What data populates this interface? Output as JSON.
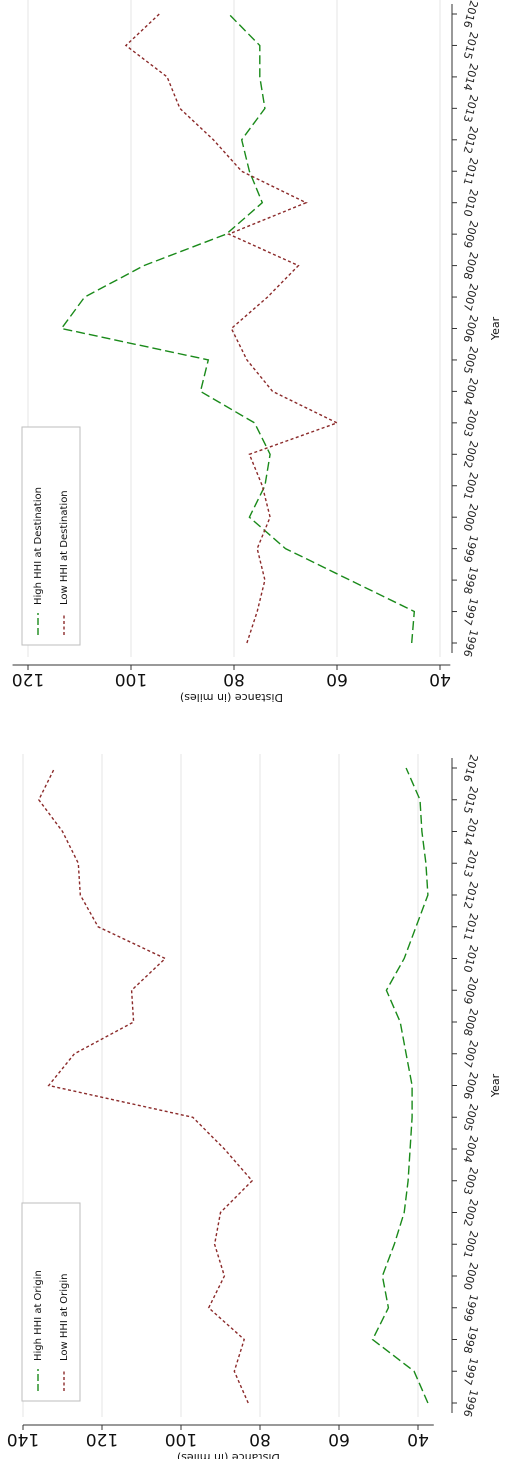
{
  "chart_data": [
    {
      "type": "line",
      "title": "",
      "xlabel": "Year",
      "ylabel": "Distance (in miles)",
      "ylim": [
        36,
        140
      ],
      "yticks": [
        40,
        60,
        80,
        100,
        120,
        140
      ],
      "x": [
        1996,
        1997,
        1998,
        1999,
        2000,
        2001,
        2002,
        2003,
        2004,
        2005,
        2006,
        2007,
        2008,
        2009,
        2010,
        2011,
        2012,
        2013,
        2014,
        2015,
        2016
      ],
      "grid": true,
      "legend_position": "top-left",
      "series": [
        {
          "name": "High HHI at Origin",
          "color": "#1a8a1a",
          "dash": "long",
          "values": [
            37.5,
            41,
            51.5,
            47.5,
            49,
            46,
            43.5,
            42.5,
            42,
            41.5,
            41.5,
            43,
            44.5,
            48,
            43.5,
            40.5,
            37.5,
            38,
            39,
            39.5,
            43
          ]
        },
        {
          "name": "Low HHI at Origin",
          "color": "#8b2a2a",
          "dash": "short",
          "values": [
            83,
            86.5,
            84,
            93,
            89,
            91.5,
            90,
            82,
            89,
            97,
            133.5,
            127,
            112,
            112.5,
            104,
            121,
            125.5,
            126,
            130,
            136,
            132
          ]
        }
      ]
    },
    {
      "type": "line",
      "title": "",
      "xlabel": "Year",
      "ylabel": "Distance (in miles)",
      "ylim": [
        38,
        123
      ],
      "yticks": [
        40,
        60,
        80,
        100,
        120
      ],
      "x": [
        1996,
        1997,
        1998,
        1999,
        2000,
        2001,
        2002,
        2003,
        2004,
        2005,
        2006,
        2007,
        2008,
        2009,
        2010,
        2011,
        2012,
        2013,
        2014,
        2015,
        2016
      ],
      "grid": true,
      "legend_position": "top-left",
      "series": [
        {
          "name": "High HHI at Destination",
          "color": "#1a8a1a",
          "dash": "long",
          "values": [
            45.5,
            45,
            57.5,
            70,
            77,
            74,
            73,
            76,
            86.5,
            85,
            113.5,
            109,
            97.5,
            81.5,
            74.5,
            77,
            78.5,
            74,
            75,
            75,
            81
          ]
        },
        {
          "name": "Low HHI at Destination",
          "color": "#8b2a2a",
          "dash": "short",
          "values": [
            77.5,
            75.5,
            74,
            75.5,
            73,
            74.5,
            77,
            60,
            72.5,
            77.5,
            80.5,
            73.5,
            67.5,
            81,
            66,
            78.5,
            84,
            90.5,
            93,
            101,
            94.5
          ]
        }
      ]
    }
  ]
}
